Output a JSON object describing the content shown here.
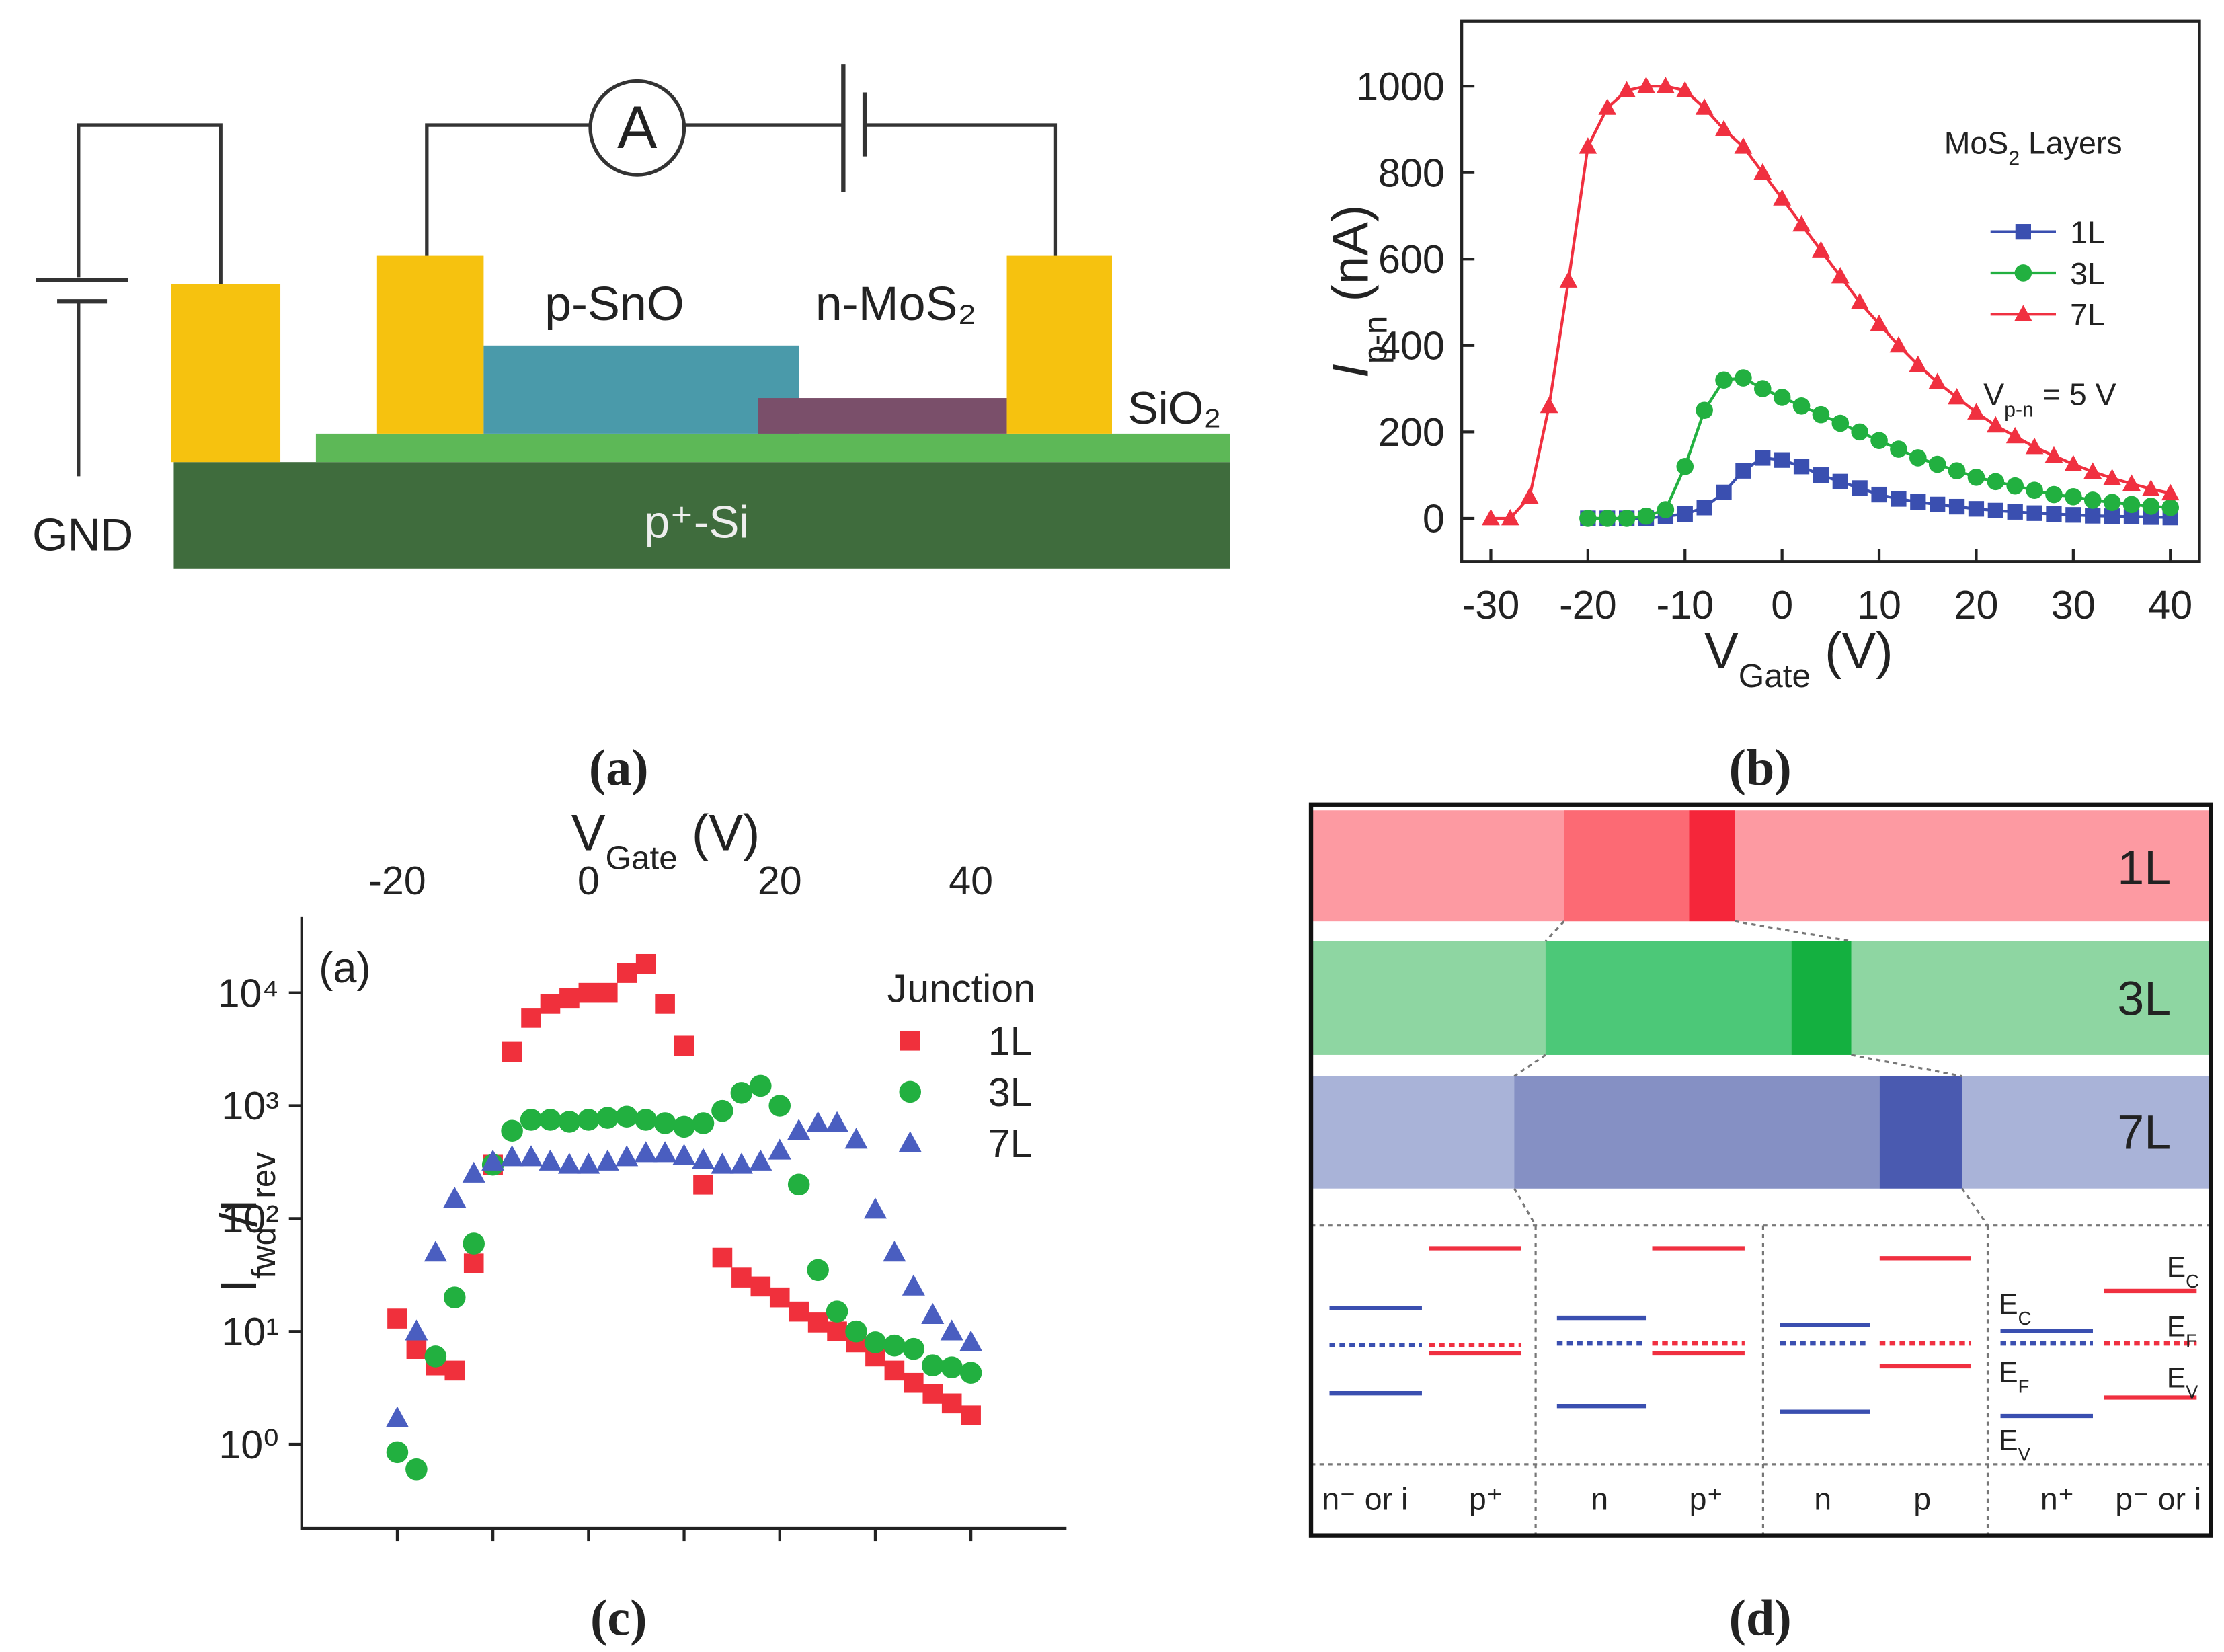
{
  "figure_a": {
    "ammeter": "A",
    "p_layer": "p-SnO",
    "n_layer": "n-MoS₂",
    "oxide": "SiO₂",
    "ground": "GND",
    "substrate": "p⁺-Si"
  },
  "chart_data": [
    {
      "type": "line",
      "xlabel": [
        {
          "text": "V"
        },
        {
          "text": "Gate",
          "sub": true
        },
        {
          "text": " (V)"
        }
      ],
      "ylabel": [
        {
          "text": "I",
          "italic": true
        },
        {
          "text": "p-n",
          "sub": true
        },
        {
          "text": " (nA)"
        }
      ],
      "xlim": [
        -33,
        43
      ],
      "xticks": [
        -30,
        -20,
        -10,
        0,
        10,
        20,
        30,
        40
      ],
      "ylim": [
        -100,
        1150
      ],
      "yticks": [
        0,
        200,
        400,
        600,
        800,
        1000
      ],
      "legend_title": [
        {
          "text": "MoS"
        },
        {
          "text": "2",
          "sub": true
        },
        {
          "text": " Layers"
        }
      ],
      "legend": "right",
      "annotation": [
        {
          "text": "V"
        },
        {
          "text": "p-n",
          "sub": true
        },
        {
          "text": " = 5 V"
        }
      ],
      "series": [
        {
          "name": "1L",
          "color": "#3a4fb0",
          "marker": "square",
          "x": [
            -20,
            -18,
            -16,
            -14,
            -12,
            -10,
            -8,
            -6,
            -4,
            -2,
            0,
            2,
            4,
            6,
            8,
            10,
            12,
            14,
            16,
            18,
            20,
            22,
            24,
            26,
            28,
            30,
            32,
            34,
            36,
            38,
            40
          ],
          "values": [
            0,
            0,
            0,
            0,
            5,
            10,
            25,
            60,
            110,
            140,
            135,
            120,
            100,
            85,
            70,
            55,
            45,
            38,
            32,
            27,
            22,
            18,
            15,
            12,
            10,
            8,
            6,
            5,
            4,
            3,
            2
          ]
        },
        {
          "name": "3L",
          "color": "#22b040",
          "marker": "circle",
          "x": [
            -20,
            -18,
            -16,
            -14,
            -12,
            -10,
            -8,
            -6,
            -4,
            -2,
            0,
            2,
            4,
            6,
            8,
            10,
            12,
            14,
            16,
            18,
            20,
            22,
            24,
            26,
            28,
            30,
            32,
            34,
            36,
            38,
            40
          ],
          "values": [
            0,
            0,
            0,
            5,
            20,
            120,
            250,
            320,
            325,
            300,
            280,
            260,
            240,
            220,
            200,
            180,
            160,
            140,
            125,
            110,
            95,
            85,
            75,
            65,
            55,
            50,
            42,
            37,
            32,
            28,
            25
          ]
        },
        {
          "name": "7L",
          "color": "#f03040",
          "marker": "triangle",
          "x": [
            -30,
            -28,
            -26,
            -24,
            -22,
            -20,
            -18,
            -16,
            -14,
            -12,
            -10,
            -8,
            -6,
            -4,
            -2,
            0,
            2,
            4,
            6,
            8,
            10,
            12,
            14,
            16,
            18,
            20,
            22,
            24,
            26,
            28,
            30,
            32,
            34,
            36,
            38,
            40
          ],
          "values": [
            0,
            0,
            50,
            260,
            550,
            860,
            950,
            990,
            1000,
            1000,
            990,
            950,
            900,
            860,
            800,
            740,
            680,
            620,
            560,
            500,
            450,
            400,
            355,
            315,
            280,
            245,
            215,
            190,
            165,
            145,
            125,
            108,
            93,
            80,
            68,
            58
          ]
        }
      ]
    },
    {
      "type": "scatter",
      "panel_label": "(a)",
      "xlabel": [
        {
          "text": "V"
        },
        {
          "text": "Gate",
          "sub": true
        },
        {
          "text": " (V)"
        }
      ],
      "ylabel": [
        {
          "text": "I"
        },
        {
          "text": "fwd",
          "sub": true
        },
        {
          "text": "/I"
        },
        {
          "text": "rev",
          "sub": true
        }
      ],
      "x_axis_position": "top",
      "log_y": true,
      "xlim": [
        -30,
        50
      ],
      "xticks": [
        -20,
        0,
        20,
        40
      ],
      "ylim": [
        0.18,
        47000
      ],
      "yticks": [
        {
          "value": 1,
          "label": "10⁰"
        },
        {
          "value": 10,
          "label": "10¹"
        },
        {
          "value": 100,
          "label": "10²"
        },
        {
          "value": 1000,
          "label": "10³"
        },
        {
          "value": 10000,
          "label": "10⁴"
        }
      ],
      "legend_title": "Junction",
      "legend": "upper right",
      "x": [
        -20,
        -18,
        -16,
        -14,
        -12,
        -10,
        -8,
        -6,
        -4,
        -2,
        0,
        2,
        4,
        6,
        8,
        10,
        12,
        14,
        16,
        18,
        20,
        22,
        24,
        26,
        28,
        30,
        32,
        34,
        36,
        38,
        40
      ],
      "series": [
        {
          "name": "1L",
          "color": "#f0303c",
          "marker": "square",
          "values": [
            13,
            7,
            5,
            4.5,
            40,
            300,
            3000,
            6000,
            8000,
            9000,
            10000,
            10000,
            15000,
            18000,
            8000,
            3400,
            200,
            45,
            30,
            25,
            20,
            15,
            12,
            10,
            8,
            6,
            4.5,
            3.5,
            2.8,
            2.3,
            1.8
          ]
        },
        {
          "name": "3L",
          "color": "#22b040",
          "marker": "circle",
          "values": [
            0.85,
            0.6,
            6,
            20,
            60,
            300,
            600,
            750,
            750,
            720,
            750,
            780,
            800,
            750,
            700,
            650,
            700,
            900,
            1300,
            1500,
            1000,
            200,
            35,
            15,
            10,
            8,
            7.5,
            7,
            5,
            4.8,
            4.3
          ]
        },
        {
          "name": "7L",
          "color": "#4a5ec0",
          "marker": "triangle",
          "values": [
            1.7,
            10,
            50,
            150,
            250,
            320,
            350,
            350,
            320,
            300,
            300,
            320,
            350,
            380,
            380,
            360,
            330,
            300,
            300,
            320,
            400,
            600,
            700,
            700,
            500,
            120,
            50,
            25,
            14,
            10,
            8
          ]
        }
      ]
    }
  ],
  "figure_d": {
    "layers": [
      "1L",
      "3L",
      "7L"
    ],
    "junctions": [
      "n⁻ or i",
      "p⁺",
      "n",
      "p⁺",
      "n",
      "p",
      "n⁺",
      "p⁻ or i"
    ],
    "energy_labels": [
      [
        {
          "text": "E"
        },
        {
          "text": "C",
          "sub": true
        }
      ],
      [
        {
          "text": "E"
        },
        {
          "text": "F",
          "sub": true
        }
      ],
      [
        {
          "text": "E"
        },
        {
          "text": "V",
          "sub": true
        }
      ],
      [
        {
          "text": "E"
        },
        {
          "text": "C",
          "sub": true
        }
      ],
      [
        {
          "text": "E"
        },
        {
          "text": "F",
          "sub": true
        }
      ],
      [
        {
          "text": "E"
        },
        {
          "text": "V",
          "sub": true
        }
      ]
    ]
  },
  "captions": [
    "(a)",
    "(b)",
    "(c)",
    "(d)"
  ]
}
